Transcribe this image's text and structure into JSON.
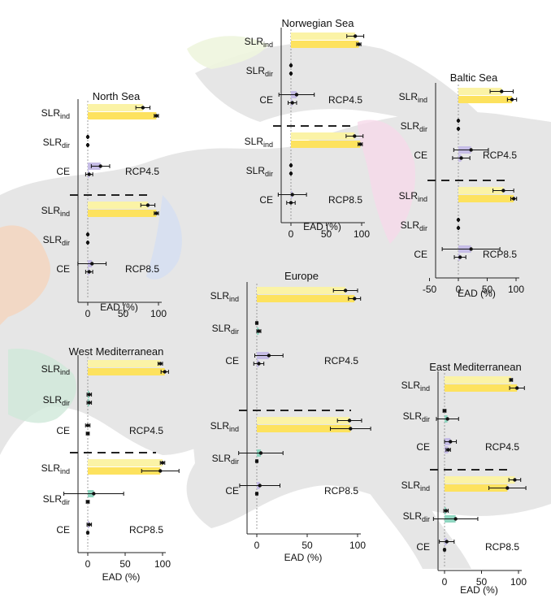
{
  "chart_data": [
    {
      "type": "bar",
      "title": "North Sea",
      "xlabel": "EAD (%)",
      "xticks": [
        "0",
        "50",
        "100"
      ],
      "xlim": [
        -25,
        105
      ],
      "scenarios": [
        "RCP4.5",
        "RCP8.5"
      ],
      "rows": [
        {
          "label": "SLR",
          "sub": "ind",
          "rcp": "RCP4.5",
          "values": [
            78,
            97
          ],
          "errors": [
            10,
            3
          ]
        },
        {
          "label": "SLR",
          "sub": "dir",
          "rcp": "RCP4.5",
          "values": [
            0,
            0
          ],
          "errors": [
            0.5,
            0.5
          ]
        },
        {
          "label": "CE",
          "sub": "",
          "rcp": "RCP4.5",
          "values": [
            18,
            2
          ],
          "errors": [
            13,
            5
          ]
        },
        {
          "label": "SLR",
          "sub": "ind",
          "rcp": "RCP8.5",
          "values": [
            85,
            97
          ],
          "errors": [
            10,
            3
          ]
        },
        {
          "label": "SLR",
          "sub": "dir",
          "rcp": "RCP8.5",
          "values": [
            0,
            0
          ],
          "errors": [
            0.5,
            0.5
          ]
        },
        {
          "label": "CE",
          "sub": "",
          "rcp": "RCP8.5",
          "values": [
            6,
            2
          ],
          "errors": [
            20,
            5
          ]
        }
      ]
    },
    {
      "type": "bar",
      "title": "Norwegian Sea",
      "xlabel": "EAD (%)",
      "xticks": [
        "0",
        "50",
        "100"
      ],
      "xlim": [
        -25,
        105
      ],
      "scenarios": [
        "RCP4.5",
        "RCP8.5"
      ],
      "rows": [
        {
          "label": "SLR",
          "sub": "ind",
          "rcp": "RCP4.5",
          "values": [
            91,
            96
          ],
          "errors": [
            12,
            3
          ]
        },
        {
          "label": "SLR",
          "sub": "dir",
          "rcp": "RCP4.5",
          "values": [
            0,
            0
          ],
          "errors": [
            0.5,
            0.5
          ]
        },
        {
          "label": "CE",
          "sub": "",
          "rcp": "RCP4.5",
          "values": [
            8,
            2
          ],
          "errors": [
            25,
            6
          ]
        },
        {
          "label": "SLR",
          "sub": "ind",
          "rcp": "RCP8.5",
          "values": [
            90,
            98
          ],
          "errors": [
            12,
            3
          ]
        },
        {
          "label": "SLR",
          "sub": "dir",
          "rcp": "RCP8.5",
          "values": [
            0,
            0
          ],
          "errors": [
            0.5,
            0.5
          ]
        },
        {
          "label": "CE",
          "sub": "",
          "rcp": "RCP8.5",
          "values": [
            2,
            0
          ],
          "errors": [
            20,
            6
          ]
        }
      ]
    },
    {
      "type": "bar",
      "title": "Baltic Sea",
      "xlabel": "EAD (%)",
      "xticks": [
        "-50",
        "0",
        "50",
        "100"
      ],
      "xlim": [
        -62,
        105
      ],
      "scenarios": [
        "RCP4.5",
        "RCP8.5"
      ],
      "rows": [
        {
          "label": "SLR",
          "sub": "ind",
          "rcp": "RCP4.5",
          "values": [
            75,
            93
          ],
          "errors": [
            20,
            8
          ]
        },
        {
          "label": "SLR",
          "sub": "dir",
          "rcp": "RCP4.5",
          "values": [
            0,
            0
          ],
          "errors": [
            0.5,
            0.5
          ]
        },
        {
          "label": "CE",
          "sub": "",
          "rcp": "RCP4.5",
          "values": [
            22,
            5
          ],
          "errors": [
            30,
            15
          ]
        },
        {
          "label": "SLR",
          "sub": "ind",
          "rcp": "RCP8.5",
          "values": [
            78,
            96
          ],
          "errors": [
            18,
            5
          ]
        },
        {
          "label": "SLR",
          "sub": "dir",
          "rcp": "RCP8.5",
          "values": [
            0,
            0
          ],
          "errors": [
            0.5,
            0.5
          ]
        },
        {
          "label": "CE",
          "sub": "",
          "rcp": "RCP8.5",
          "values": [
            22,
            3
          ],
          "errors": [
            50,
            10
          ]
        }
      ]
    },
    {
      "type": "bar",
      "title": "Europe",
      "xlabel": "EAD (%)",
      "xticks": [
        "0",
        "50",
        "100"
      ],
      "xlim": [
        -20,
        112
      ],
      "scenarios": [
        "RCP4.5",
        "RCP8.5"
      ],
      "rows": [
        {
          "label": "SLR",
          "sub": "ind",
          "rcp": "RCP4.5",
          "values": [
            88,
            97
          ],
          "errors": [
            12,
            6
          ]
        },
        {
          "label": "SLR",
          "sub": "dir",
          "rcp": "RCP4.5",
          "values": [
            0,
            2
          ],
          "errors": [
            1,
            2
          ]
        },
        {
          "label": "CE",
          "sub": "",
          "rcp": "RCP4.5",
          "values": [
            12,
            2
          ],
          "errors": [
            14,
            5
          ]
        },
        {
          "label": "SLR",
          "sub": "ind",
          "rcp": "RCP8.5",
          "values": [
            92,
            93
          ],
          "errors": [
            12,
            20
          ]
        },
        {
          "label": "SLR",
          "sub": "dir",
          "rcp": "RCP8.5",
          "values": [
            4,
            0
          ],
          "errors": [
            22,
            1
          ]
        },
        {
          "label": "CE",
          "sub": "",
          "rcp": "RCP8.5",
          "values": [
            3,
            0
          ],
          "errors": [
            20,
            1
          ]
        }
      ]
    },
    {
      "type": "bar",
      "title": "West Mediterranean",
      "xlabel": "EAD (%)",
      "xticks": [
        "0",
        "50",
        "100"
      ],
      "xlim": [
        -15,
        112
      ],
      "scenarios": [
        "RCP4.5",
        "RCP8.5"
      ],
      "rows": [
        {
          "label": "SLR",
          "sub": "ind",
          "rcp": "RCP4.5",
          "values": [
            97,
            103
          ],
          "errors": [
            3,
            5
          ]
        },
        {
          "label": "SLR",
          "sub": "dir",
          "rcp": "RCP4.5",
          "values": [
            2,
            2
          ],
          "errors": [
            3,
            3
          ]
        },
        {
          "label": "CE",
          "sub": "",
          "rcp": "RCP4.5",
          "values": [
            0,
            0
          ],
          "errors": [
            3,
            2
          ]
        },
        {
          "label": "SLR",
          "sub": "ind",
          "rcp": "RCP8.5",
          "values": [
            100,
            97
          ],
          "errors": [
            3,
            25
          ]
        },
        {
          "label": "SLR",
          "sub": "dir",
          "rcp": "RCP8.5",
          "values": [
            8,
            0
          ],
          "errors": [
            40,
            2
          ]
        },
        {
          "label": "CE",
          "sub": "",
          "rcp": "RCP8.5",
          "values": [
            2,
            0
          ],
          "errors": [
            3,
            1
          ]
        }
      ]
    },
    {
      "type": "bar",
      "title": "East Mediterranean",
      "xlabel": "EAD (%)",
      "xticks": [
        "0",
        "50",
        "100"
      ],
      "xlim": [
        -15,
        105
      ],
      "scenarios": [
        "RCP4.5",
        "RCP8.5"
      ],
      "rows": [
        {
          "label": "SLR",
          "sub": "ind",
          "rcp": "RCP4.5",
          "values": [
            90,
            98
          ],
          "errors": [
            2,
            10
          ]
        },
        {
          "label": "SLR",
          "sub": "dir",
          "rcp": "RCP4.5",
          "values": [
            0,
            4
          ],
          "errors": [
            2,
            15
          ]
        },
        {
          "label": "CE",
          "sub": "",
          "rcp": "RCP4.5",
          "values": [
            8,
            5
          ],
          "errors": [
            8,
            3
          ]
        },
        {
          "label": "SLR",
          "sub": "ind",
          "rcp": "RCP8.5",
          "values": [
            95,
            85
          ],
          "errors": [
            8,
            25
          ]
        },
        {
          "label": "SLR",
          "sub": "dir",
          "rcp": "RCP8.5",
          "values": [
            2,
            15
          ],
          "errors": [
            3,
            30
          ]
        },
        {
          "label": "CE",
          "sub": "",
          "rcp": "RCP8.5",
          "values": [
            3,
            0
          ],
          "errors": [
            10,
            1
          ]
        }
      ]
    }
  ],
  "colors": {
    "slr_ind_light": "#fbf3a6",
    "slr_ind_dark": "#fde25e",
    "slr_dir_ce_light": "#dcd6ee",
    "slr_dir_ce_dark": "#c6bde6",
    "east_med_slr_dir": "#8fd6c0",
    "east_med_ce": "#c8bfe8",
    "west_med_slr_dir": "#9bdac6",
    "europe_slr_dir": "#9bdac6",
    "map_land": "#e6e6e6",
    "north_sea_coast": "#c9d6ef",
    "norwegian_coast": "#e7f1cf",
    "baltic_coast": "#f3cfe4",
    "atlantic_coast": "#f7c9a6",
    "west_med_coast": "#bfe5cf"
  }
}
